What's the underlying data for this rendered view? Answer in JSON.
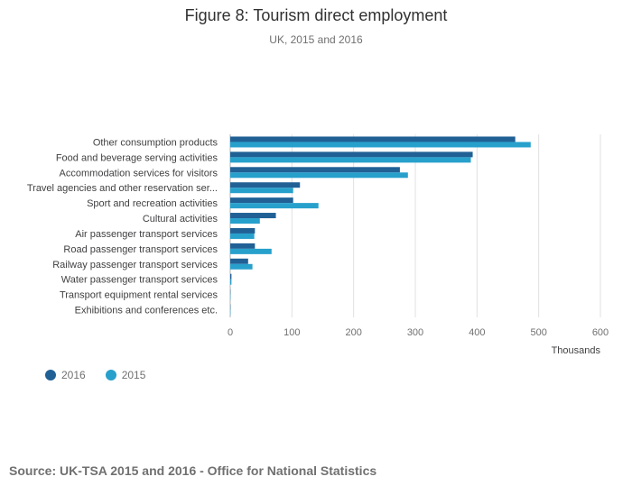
{
  "title": "Figure 8: Tourism direct employment",
  "subtitle": "UK, 2015 and 2016",
  "source": "Source: UK-TSA 2015 and 2016 - Office for National Statistics",
  "colors": {
    "series_2016": "#206095",
    "series_2015": "#27a0cc",
    "grid": "#e0e0e0"
  },
  "chart_data": {
    "type": "bar",
    "orientation": "horizontal",
    "title": "Figure 8: Tourism direct employment",
    "subtitle": "UK, 2015 and 2016",
    "xlabel": "Thousands",
    "ylabel": "",
    "xlim": [
      0,
      600
    ],
    "xticks": [
      0,
      100,
      200,
      300,
      400,
      500,
      600
    ],
    "legend_position": "bottom-left",
    "categories": [
      "Other consumption products",
      "Food and beverage serving activities",
      "Accommodation services for visitors",
      "Travel agencies and other reservation ser...",
      "Sport and recreation activities",
      "Cultural activities",
      "Air passenger transport services",
      "Road passenger transport services",
      "Railway passenger transport services",
      "Water passenger transport services",
      "Transport equipment rental services",
      "Exhibitions and conferences etc."
    ],
    "series": [
      {
        "name": "2016",
        "values": [
          462,
          393,
          275,
          113,
          102,
          74,
          40,
          40,
          29,
          2,
          0.5,
          0.5
        ]
      },
      {
        "name": "2015",
        "values": [
          487,
          390,
          288,
          102,
          143,
          48,
          39,
          67,
          36,
          2,
          0.5,
          0.5
        ]
      }
    ]
  }
}
